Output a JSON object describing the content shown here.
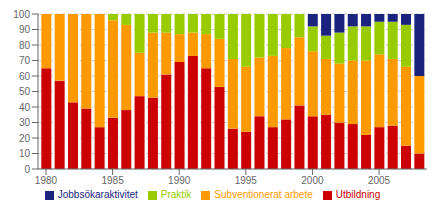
{
  "chart_data": {
    "type": "bar",
    "stacked": true,
    "grid": true,
    "legend": "bottom",
    "x": [
      1980,
      1981,
      1982,
      1983,
      1984,
      1985,
      1986,
      1987,
      1988,
      1989,
      1990,
      1991,
      1992,
      1993,
      1994,
      1995,
      1996,
      1997,
      1998,
      1999,
      2000,
      2001,
      2002,
      2003,
      2004,
      2005,
      2006,
      2007,
      2008
    ],
    "xlim": [
      1979.4,
      2008.6
    ],
    "xticks": [
      1980,
      1985,
      1990,
      1995,
      2000,
      2005
    ],
    "ylim": [
      0,
      100
    ],
    "yticks": [
      0,
      10,
      20,
      30,
      40,
      50,
      60,
      70,
      80,
      90,
      100
    ],
    "series": [
      {
        "name": "Utbildning",
        "color": "#cc0000",
        "values": [
          65,
          57,
          43,
          39,
          27,
          33,
          38,
          47,
          46,
          61,
          69,
          73,
          65,
          53,
          26,
          24,
          34,
          27,
          32,
          41,
          34,
          35,
          30,
          29,
          22,
          27,
          28,
          15,
          10
        ]
      },
      {
        "name": "Subventionerat arbete",
        "color": "#ff9900",
        "values": [
          35,
          43,
          57,
          61,
          73,
          63,
          55,
          28,
          42,
          27,
          18,
          15,
          22,
          31,
          45,
          42,
          38,
          46,
          46,
          44,
          42,
          36,
          38,
          41,
          48,
          47,
          43,
          51,
          50
        ]
      },
      {
        "name": "Praktik",
        "color": "#99cc00",
        "values": [
          0,
          0,
          0,
          0,
          0,
          4,
          7,
          25,
          12,
          12,
          13,
          12,
          13,
          16,
          29,
          34,
          28,
          27,
          22,
          15,
          16,
          15,
          20,
          22,
          22,
          21,
          24,
          27,
          0
        ]
      },
      {
        "name": "Jobbsökaraktivitet",
        "color": "#1a237e",
        "values": [
          0,
          0,
          0,
          0,
          0,
          0,
          0,
          0,
          0,
          0,
          0,
          0,
          0,
          0,
          0,
          0,
          0,
          0,
          0,
          0,
          8,
          14,
          12,
          8,
          8,
          5,
          5,
          7,
          40
        ]
      }
    ]
  }
}
